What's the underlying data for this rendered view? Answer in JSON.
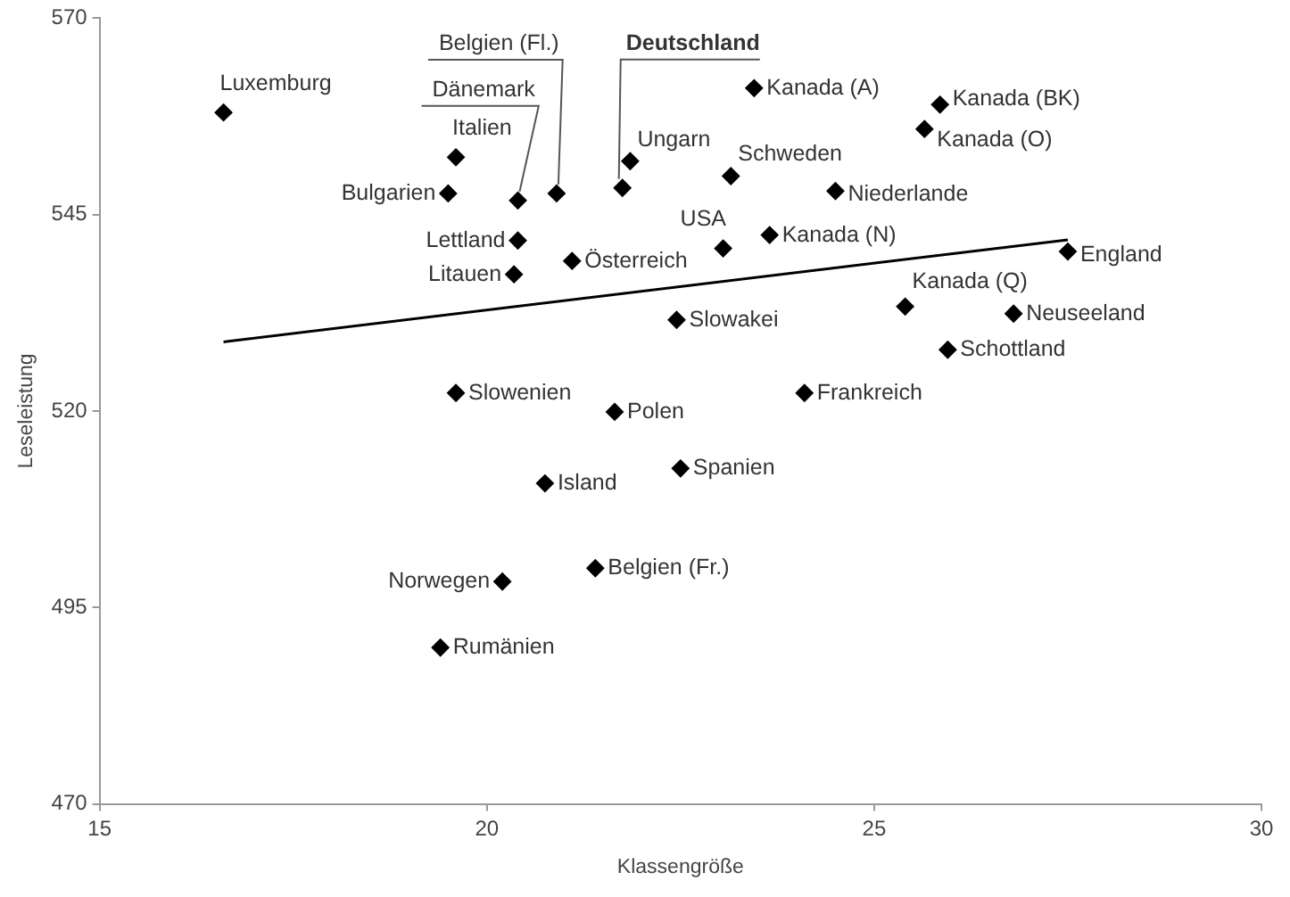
{
  "chart_data": {
    "type": "scatter",
    "xlabel": "Klassengröße",
    "ylabel": "Leseleistung",
    "xlim": [
      15,
      30
    ],
    "xticks": [
      15,
      20,
      25,
      30
    ],
    "ylim": [
      470,
      570
    ],
    "yticks": [
      470,
      495,
      520,
      545,
      570
    ],
    "grid": false,
    "legend": false,
    "marker": "diamond",
    "series": [
      {
        "color": "#000000",
        "x": [
          16.6,
          19.6,
          19.5,
          20.4,
          20.9,
          21.75,
          21.85,
          20.4,
          20.35,
          21.1,
          19.6,
          21.65,
          23.45,
          25.85,
          25.65,
          23.15,
          24.5,
          23.05,
          23.65,
          27.5,
          25.4,
          26.8,
          25.95,
          22.45,
          24.1,
          20.75,
          22.5,
          21.4,
          20.2,
          19.4
        ],
        "values": [
          558,
          552.3,
          547.7,
          546.8,
          547.7,
          548.4,
          551.8,
          541.7,
          537.4,
          539.1,
          522.3,
          519.9,
          561.1,
          559,
          555.9,
          549.9,
          548,
          540.7,
          542.4,
          540.3,
          533.3,
          532.4,
          527.8,
          531.6,
          522.3,
          510.8,
          512.7,
          500,
          498.3,
          489.9
        ]
      },
      {
        "type": "line",
        "marker": "none",
        "color": "#000000",
        "x": [
          16.6,
          27.5
        ],
        "values": [
          528.8,
          541.8
        ]
      }
    ],
    "annotations": [
      {
        "text": "Luxemburg",
        "x": 16.6,
        "y": 558
      },
      {
        "text": "Italien",
        "x": 19.6,
        "y": 552.3
      },
      {
        "text": "Bulgarien",
        "x": 19.5,
        "y": 547.7
      },
      {
        "text": "Dänemark",
        "x": 20.4,
        "y": 546.8
      },
      {
        "text": "Belgien (Fl.)",
        "x": 20.9,
        "y": 547.7
      },
      {
        "text": "Deutschland",
        "x": 21.75,
        "y": 548.4
      },
      {
        "text": "Ungarn",
        "x": 21.85,
        "y": 551.8
      },
      {
        "text": "Lettland",
        "x": 20.4,
        "y": 541.7
      },
      {
        "text": "Litauen",
        "x": 20.35,
        "y": 537.4
      },
      {
        "text": "Österreich",
        "x": 21.1,
        "y": 539.1
      },
      {
        "text": "Slowenien",
        "x": 19.6,
        "y": 522.3
      },
      {
        "text": "Polen",
        "x": 21.65,
        "y": 519.9
      },
      {
        "text": "Kanada (A)",
        "x": 23.45,
        "y": 561.1
      },
      {
        "text": "Kanada (BK)",
        "x": 25.85,
        "y": 559
      },
      {
        "text": "Kanada (O)",
        "x": 25.65,
        "y": 555.9
      },
      {
        "text": "Schweden",
        "x": 23.15,
        "y": 549.9
      },
      {
        "text": "Niederlande",
        "x": 24.5,
        "y": 548
      },
      {
        "text": "USA",
        "x": 23.05,
        "y": 540.7
      },
      {
        "text": "Kanada (N)",
        "x": 23.65,
        "y": 542.4
      },
      {
        "text": "England",
        "x": 27.5,
        "y": 540.3
      },
      {
        "text": "Kanada (Q)",
        "x": 25.4,
        "y": 533.3
      },
      {
        "text": "Neuseeland",
        "x": 26.8,
        "y": 532.4
      },
      {
        "text": "Schottland",
        "x": 25.95,
        "y": 527.8
      },
      {
        "text": "Slowakei",
        "x": 22.45,
        "y": 531.6
      },
      {
        "text": "Frankreich",
        "x": 24.1,
        "y": 522.3
      },
      {
        "text": "Island",
        "x": 20.75,
        "y": 510.8
      },
      {
        "text": "Spanien",
        "x": 22.5,
        "y": 512.7
      },
      {
        "text": "Belgien (Fr.)",
        "x": 21.4,
        "y": 500
      },
      {
        "text": "Norwegen",
        "x": 20.2,
        "y": 498.3
      },
      {
        "text": "Rumänien",
        "x": 19.4,
        "y": 489.9
      }
    ]
  }
}
